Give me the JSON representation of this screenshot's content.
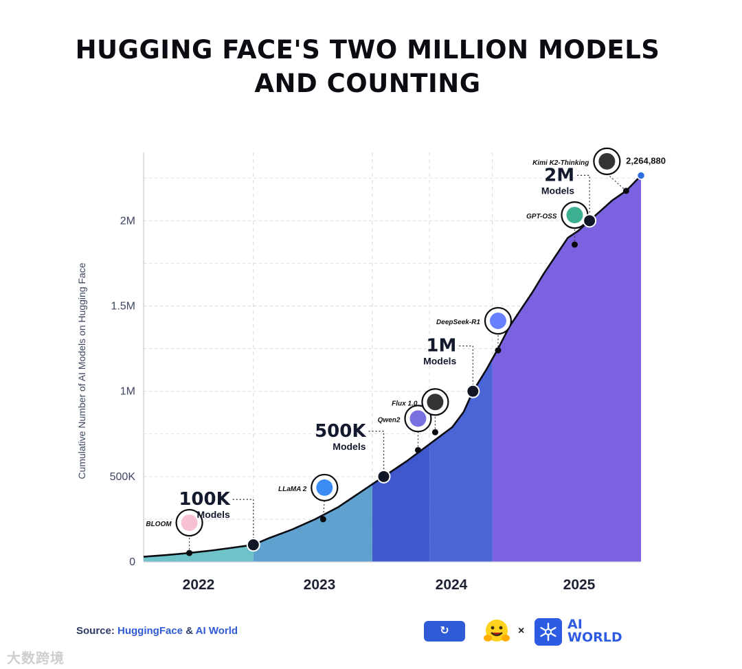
{
  "header": {
    "title_line1": "HUGGING FACE'S TWO MILLION MODELS",
    "title_line2": "AND COUNTING"
  },
  "chart_data": {
    "type": "area",
    "ylabel": "Cumulative Number of AI Models on Hugging Face",
    "xlabel": "",
    "ylim": [
      0,
      2400000
    ],
    "grid": true,
    "yticks": [
      {
        "value": 0,
        "label": "0"
      },
      {
        "value": 500000,
        "label": "500K"
      },
      {
        "value": 1000000,
        "label": "1M"
      },
      {
        "value": 1500000,
        "label": "1.5M"
      },
      {
        "value": 2000000,
        "label": "2M"
      }
    ],
    "x_range": [
      2021.5,
      2025.85
    ],
    "year_labels": [
      {
        "year": 2022,
        "label": "2022"
      },
      {
        "year": 2023,
        "label": "2023"
      },
      {
        "year": 2024,
        "label": "2024"
      },
      {
        "year": 2025,
        "label": "2025"
      }
    ],
    "series": [
      {
        "x": [
          2021.5,
          2021.7,
          2021.9,
          2022.1,
          2022.3,
          2022.46,
          2022.6,
          2022.8,
          2023.0,
          2023.2,
          2023.4,
          2023.6,
          2023.8,
          2024.0,
          2024.2,
          2024.3,
          2024.38,
          2024.5,
          2024.6,
          2024.7,
          2024.8,
          2024.9,
          2025.0,
          2025.1,
          2025.21,
          2025.3,
          2025.4,
          2025.5,
          2025.6,
          2025.72,
          2025.85
        ],
        "y": [
          30000,
          40000,
          52000,
          67000,
          85000,
          100000,
          140000,
          190000,
          250000,
          320000,
          410000,
          500000,
          590000,
          690000,
          790000,
          880000,
          1000000,
          1130000,
          1250000,
          1380000,
          1480000,
          1580000,
          1690000,
          1790000,
          1900000,
          1940000,
          2000000,
          2060000,
          2120000,
          2175000,
          2264880
        ]
      }
    ],
    "bands": [
      {
        "from": 2021.5,
        "to": 2022.46,
        "color": "#6ec3c9"
      },
      {
        "from": 2022.46,
        "to": 2023.5,
        "color": "#5fa2cf"
      },
      {
        "from": 2023.5,
        "to": 2024.0,
        "color": "#3f59cc"
      },
      {
        "from": 2024.0,
        "to": 2024.55,
        "color": "#4a66d6"
      },
      {
        "from": 2024.55,
        "to": 2025.85,
        "color": "#7b62e0"
      }
    ],
    "milestones": [
      {
        "x": 2022.46,
        "value": 100000,
        "big": "100K",
        "small": "Models"
      },
      {
        "x": 2023.6,
        "value": 500000,
        "big": "500K",
        "small": "Models"
      },
      {
        "x": 2024.38,
        "value": 1000000,
        "big": "1M",
        "small": "Models"
      },
      {
        "x": 2025.4,
        "value": 2000000,
        "big": "2M",
        "small": "Models"
      }
    ],
    "releases": [
      {
        "name": "BLOOM",
        "x": 2021.9,
        "y": 52000,
        "icon": "bloom-icon",
        "color": "#f4b6c9"
      },
      {
        "name": "LLaMA 2",
        "x": 2023.07,
        "y": 250000,
        "icon": "meta-icon",
        "color": "#1877f2"
      },
      {
        "name": "Qwen2",
        "x": 2023.9,
        "y": 655000,
        "icon": "qwen-icon",
        "color": "#6156d8"
      },
      {
        "name": "Flux 1.0",
        "x": 2024.05,
        "y": 760000,
        "icon": "flux-icon",
        "color": "#111111"
      },
      {
        "name": "DeepSeek-R1",
        "x": 2024.6,
        "y": 1240000,
        "icon": "deepseek-icon",
        "color": "#4d6bfe"
      },
      {
        "name": "GPT-OSS",
        "x": 2025.27,
        "y": 1860000,
        "icon": "openai-icon",
        "color": "#1aa37f"
      },
      {
        "name": "Kimi K2-Thinking",
        "x": 2025.72,
        "y": 2175000,
        "icon": "kimi-icon",
        "color": "#111111"
      }
    ],
    "latest": {
      "x": 2025.85,
      "value": 2264880,
      "label": "2,264,880",
      "color": "#2f6ee0"
    }
  },
  "footer": {
    "source_prefix": "Source: ",
    "source_link1": "HuggingFace",
    "source_amp": " & ",
    "source_link2": "AI World",
    "refresh_glyph": "↻",
    "times": "×",
    "aiworld_line1": "AI",
    "aiworld_line2": "WORLD",
    "watermark": "大数跨境"
  },
  "colors": {
    "title": "#0b0b12",
    "line": "#0b0b12",
    "axis_text": "#3c4660",
    "grid": "#d7d9e0",
    "accent": "#2f5bd6"
  }
}
